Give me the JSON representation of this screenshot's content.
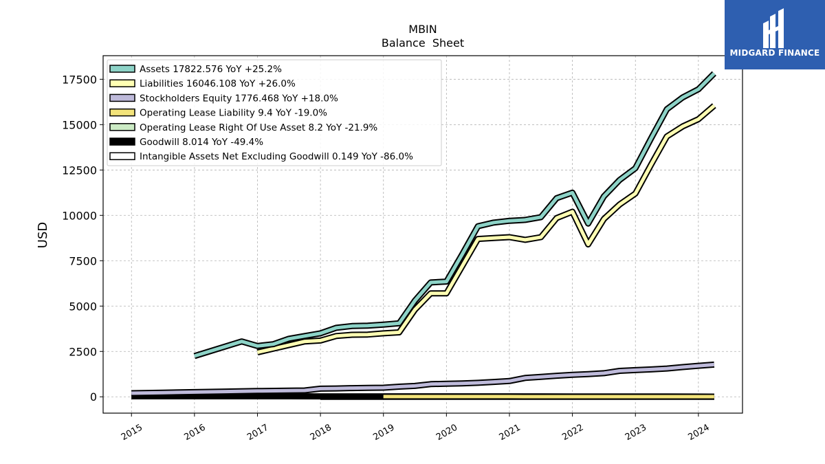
{
  "chart_data": {
    "type": "line",
    "title": "MBIN",
    "subtitle": "Balance  Sheet",
    "ylabel": "USD",
    "xlabel": "",
    "ylim": [
      -900,
      18800
    ],
    "xlim": [
      2014.55,
      2024.7
    ],
    "yticks": [
      0,
      2500,
      5000,
      7500,
      10000,
      12500,
      15000,
      17500
    ],
    "xticks": [
      "2015",
      "2016",
      "2017",
      "2018",
      "2019",
      "2020",
      "2021",
      "2022",
      "2023",
      "2024"
    ],
    "grid": true,
    "legend_position": "top-left",
    "series": [
      {
        "name": "Assets  17822.576 YoY +25.2%",
        "color": "#8dd3c7",
        "x": [
          2016.0,
          2016.75,
          2017.0,
          2017.25,
          2017.5,
          2017.75,
          2018.0,
          2018.25,
          2018.5,
          2018.75,
          2019.0,
          2019.25,
          2019.5,
          2019.75,
          2020.0,
          2020.25,
          2020.5,
          2020.75,
          2021.0,
          2021.25,
          2021.5,
          2021.75,
          2022.0,
          2022.25,
          2022.5,
          2022.75,
          2023.0,
          2023.25,
          2023.5,
          2023.75,
          2024.0,
          2024.25
        ],
        "y": [
          2250,
          3050,
          2800,
          2900,
          3200,
          3350,
          3500,
          3800,
          3900,
          3920,
          3980,
          4050,
          5300,
          6300,
          6350,
          7850,
          9400,
          9600,
          9700,
          9750,
          9900,
          10950,
          11250,
          9550,
          11050,
          11950,
          12600,
          14250,
          15850,
          16500,
          16950,
          17822
        ]
      },
      {
        "name": "Liabilities  16046.108 YoY +26.0%",
        "color": "#ffffb3",
        "x": [
          2017.0,
          2017.25,
          2017.5,
          2017.75,
          2018.0,
          2018.25,
          2018.5,
          2018.75,
          2019.0,
          2019.25,
          2019.5,
          2019.75,
          2020.0,
          2020.25,
          2020.5,
          2020.75,
          2021.0,
          2021.25,
          2021.5,
          2021.75,
          2022.0,
          2022.25,
          2022.5,
          2022.75,
          2023.0,
          2023.25,
          2023.5,
          2023.75,
          2024.0,
          2024.25
        ],
        "y": [
          2450,
          2650,
          2850,
          3050,
          3100,
          3350,
          3420,
          3430,
          3500,
          3550,
          4800,
          5700,
          5700,
          7200,
          8700,
          8750,
          8800,
          8650,
          8800,
          9850,
          10200,
          8400,
          9800,
          10600,
          11200,
          12800,
          14350,
          14900,
          15300,
          16046
        ]
      },
      {
        "name": "Stockholders Equity  1776.468 YoY +18.0%",
        "color": "#bebada",
        "x": [
          2015.0,
          2015.5,
          2016.0,
          2016.5,
          2017.0,
          2017.5,
          2017.75,
          2018.0,
          2018.25,
          2018.5,
          2018.75,
          2019.0,
          2019.25,
          2019.5,
          2019.75,
          2020.0,
          2020.25,
          2020.5,
          2020.75,
          2021.0,
          2021.25,
          2021.5,
          2021.75,
          2022.0,
          2022.25,
          2022.5,
          2022.75,
          2023.0,
          2023.25,
          2023.5,
          2023.75,
          2024.0,
          2024.25
        ],
        "y": [
          200,
          230,
          260,
          290,
          320,
          340,
          350,
          450,
          460,
          480,
          490,
          500,
          560,
          600,
          700,
          720,
          740,
          770,
          820,
          870,
          1040,
          1100,
          1160,
          1210,
          1250,
          1300,
          1430,
          1470,
          1510,
          1560,
          1640,
          1710,
          1776
        ]
      },
      {
        "name": "Operating Lease Liability  9.4 YoY -19.0%",
        "color": "#f2e37a",
        "x": [
          2019.0,
          2019.5,
          2020.0,
          2020.5,
          2021.0,
          2021.5,
          2022.0,
          2022.5,
          2023.0,
          2023.5,
          2024.0,
          2024.25
        ],
        "y": [
          14,
          13,
          13,
          12,
          12,
          11,
          11,
          11,
          10,
          10,
          10,
          9.4
        ]
      },
      {
        "name": "Operating Lease Right Of Use Asset  8.2 YoY -21.9%",
        "color": "#ccebc5",
        "x": [
          2019.0,
          2019.5,
          2020.0,
          2020.5,
          2021.0,
          2021.5,
          2022.0,
          2022.5,
          2023.0,
          2023.5,
          2024.0,
          2024.25
        ],
        "y": [
          13,
          12,
          12,
          11,
          11,
          10,
          10,
          9,
          9,
          9,
          8.5,
          8.2
        ]
      },
      {
        "name": "Goodwill  8.014 YoY -49.4%",
        "color": "#000000",
        "x": [
          2015.0,
          2015.5,
          2016.0,
          2016.5,
          2017.0,
          2017.5,
          2018.0,
          2018.5,
          2019.0,
          2019.5,
          2020.0,
          2020.5,
          2021.0,
          2021.5,
          2022.0,
          2022.5,
          2023.0,
          2023.5,
          2024.0,
          2024.25
        ],
        "y": [
          30,
          30,
          30,
          30,
          30,
          30,
          25,
          25,
          25,
          25,
          25,
          25,
          25,
          25,
          20,
          20,
          16,
          16,
          12,
          8.014
        ]
      },
      {
        "name": "Intangible Assets Net Excluding Goodwill  0.149 YoY -86.0%",
        "color": "#ffffff",
        "x": [
          2018.0,
          2018.5,
          2019.0,
          2019.5,
          2020.0,
          2020.5,
          2021.0,
          2021.5,
          2022.0,
          2022.5,
          2023.0,
          2023.5,
          2024.0,
          2024.25
        ],
        "y": [
          2,
          2,
          2,
          1.8,
          1.6,
          1.4,
          1.2,
          1.0,
          0.8,
          0.6,
          0.5,
          0.3,
          0.2,
          0.149
        ]
      }
    ]
  },
  "logo": {
    "text": "MIDGARD FINANCE"
  }
}
